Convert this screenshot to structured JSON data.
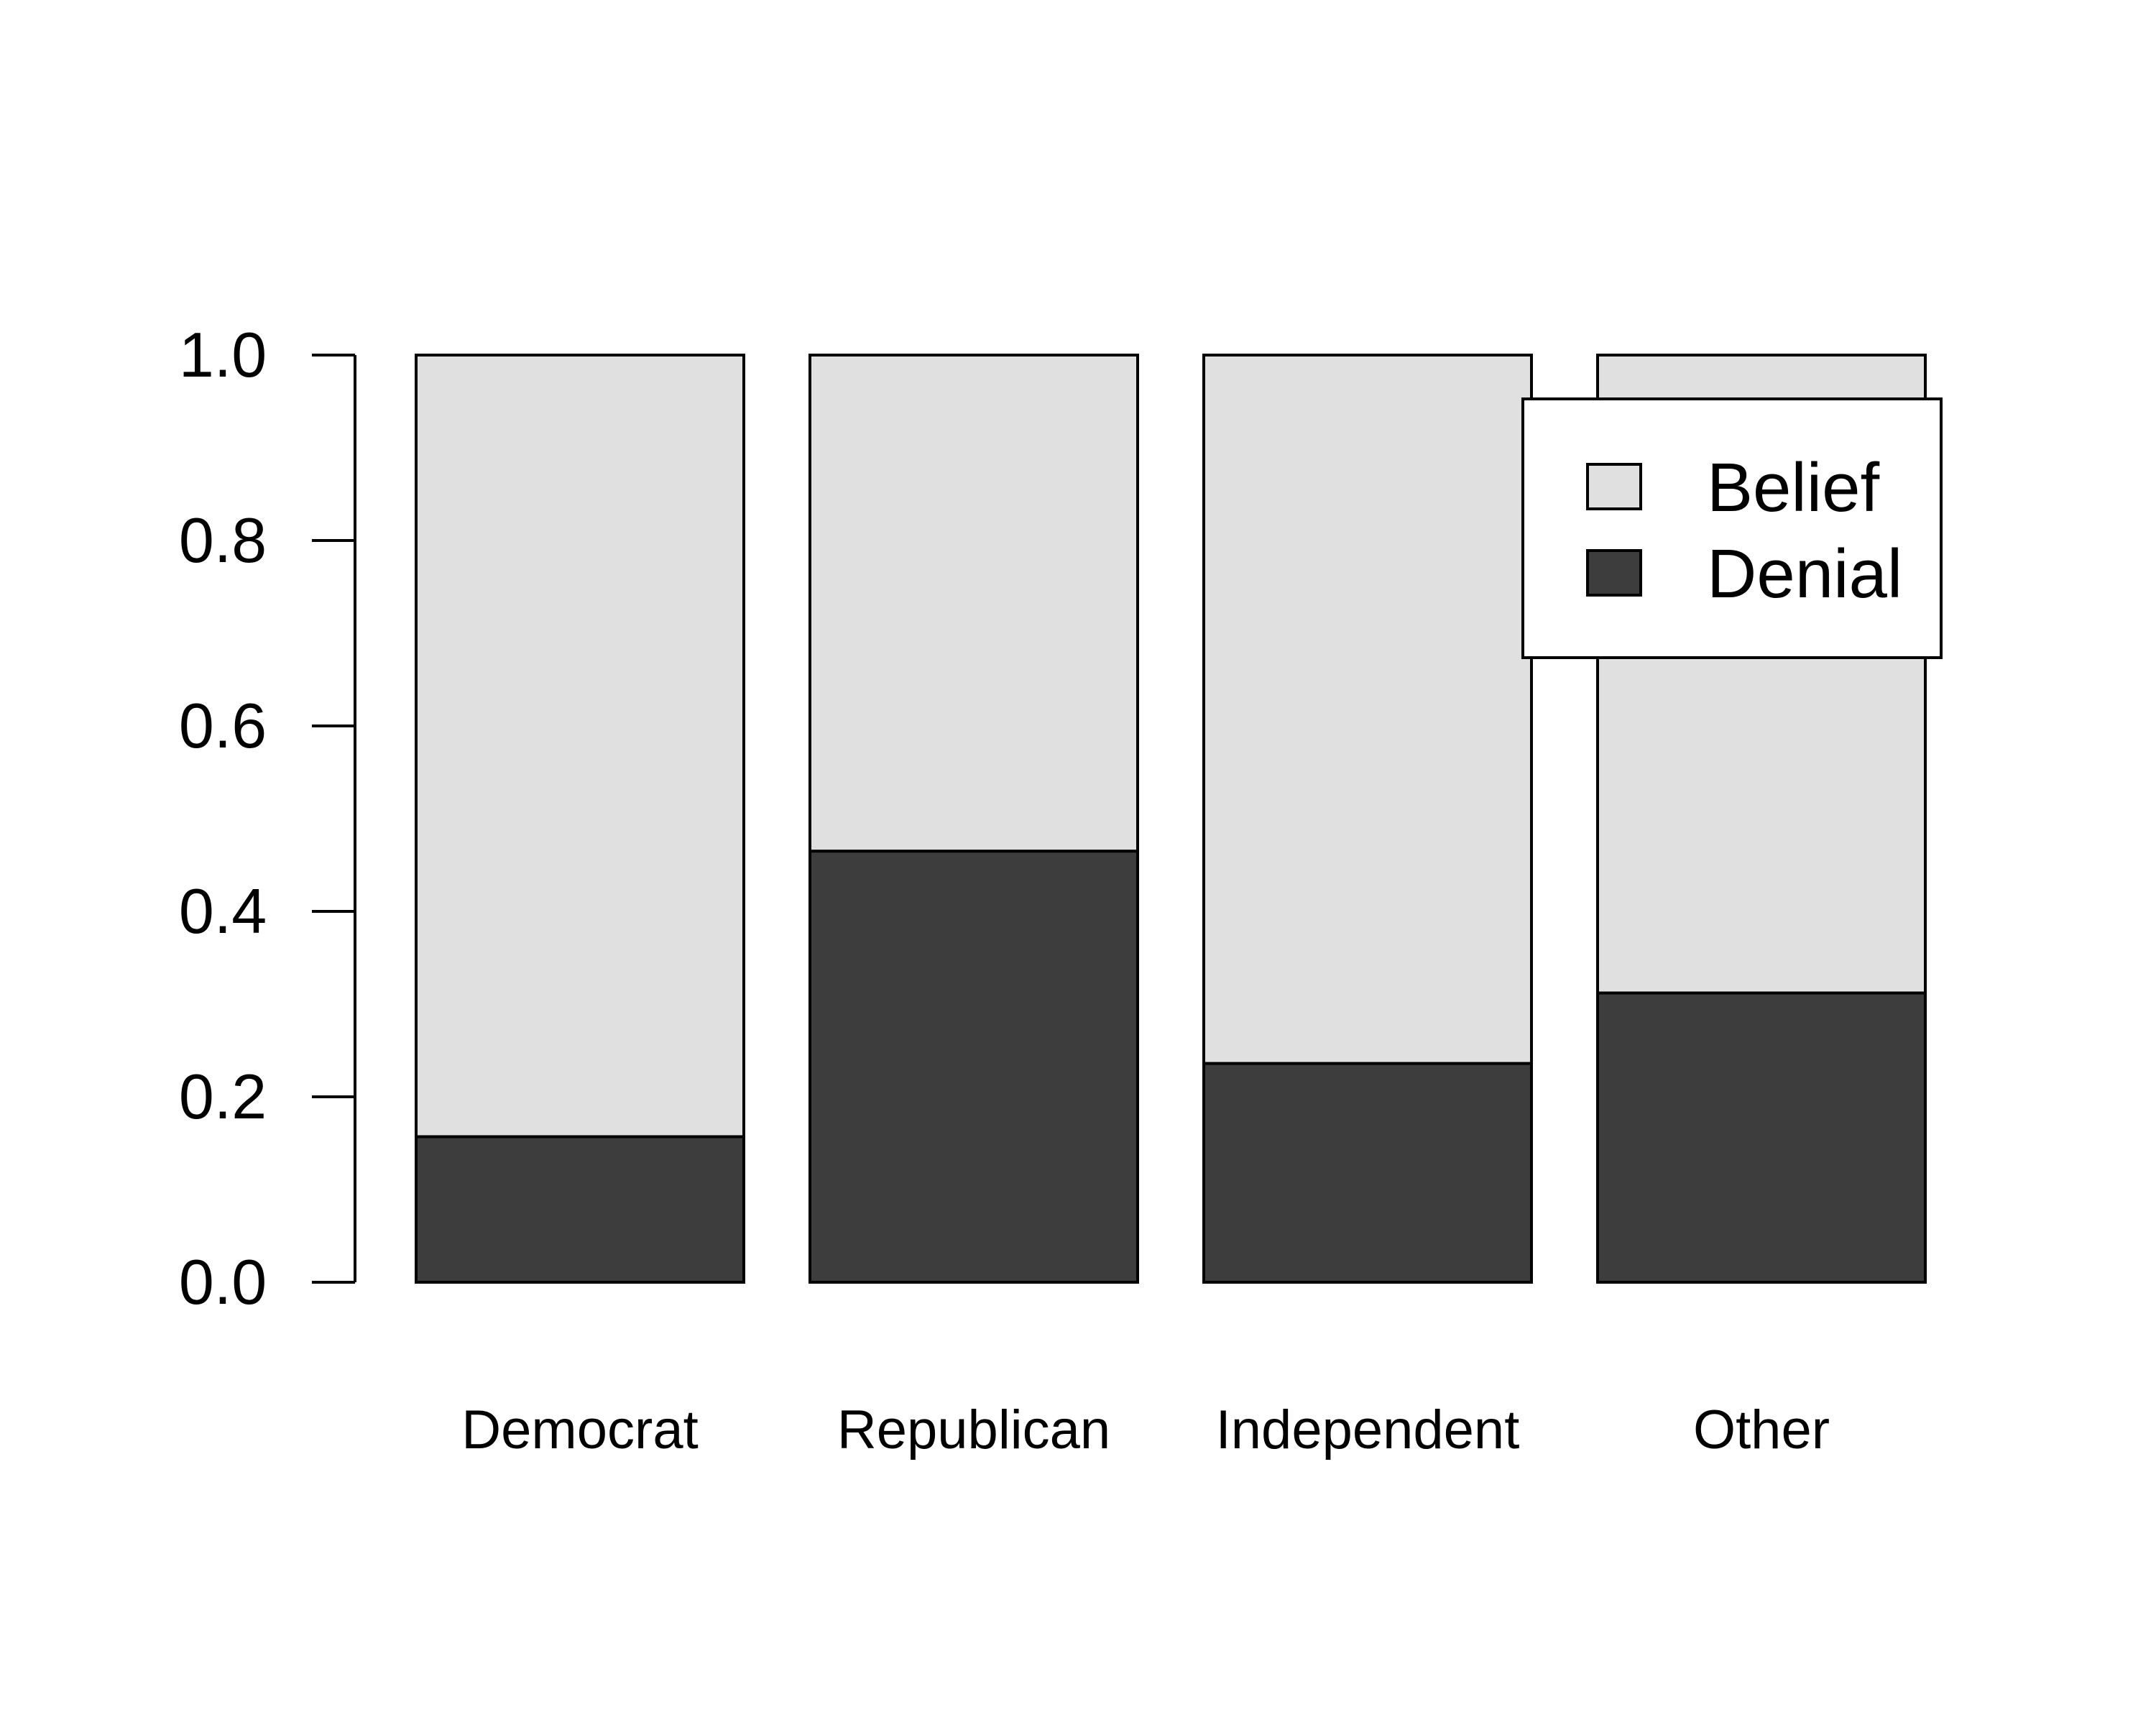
{
  "chart_data": {
    "type": "bar",
    "stacked": true,
    "categories": [
      "Democrat",
      "Republican",
      "Independent",
      "Other"
    ],
    "series": [
      {
        "name": "Denial",
        "values": [
          0.157,
          0.465,
          0.236,
          0.312
        ]
      },
      {
        "name": "Belief",
        "values": [
          0.843,
          0.535,
          0.764,
          0.688
        ]
      }
    ],
    "ylim": [
      0,
      1
    ],
    "yticks": [
      "0.0",
      "0.2",
      "0.4",
      "0.6",
      "0.8",
      "1.0"
    ],
    "title": "",
    "xlabel": "",
    "ylabel": "",
    "grid": false,
    "legend": {
      "position": "top-right",
      "items": [
        {
          "name": "Belief",
          "color": "#e0e0e0"
        },
        {
          "name": "Denial",
          "color": "#3d3d3d"
        }
      ]
    },
    "colors": {
      "Belief": "#e0e0e0",
      "Denial": "#3d3d3d"
    }
  }
}
